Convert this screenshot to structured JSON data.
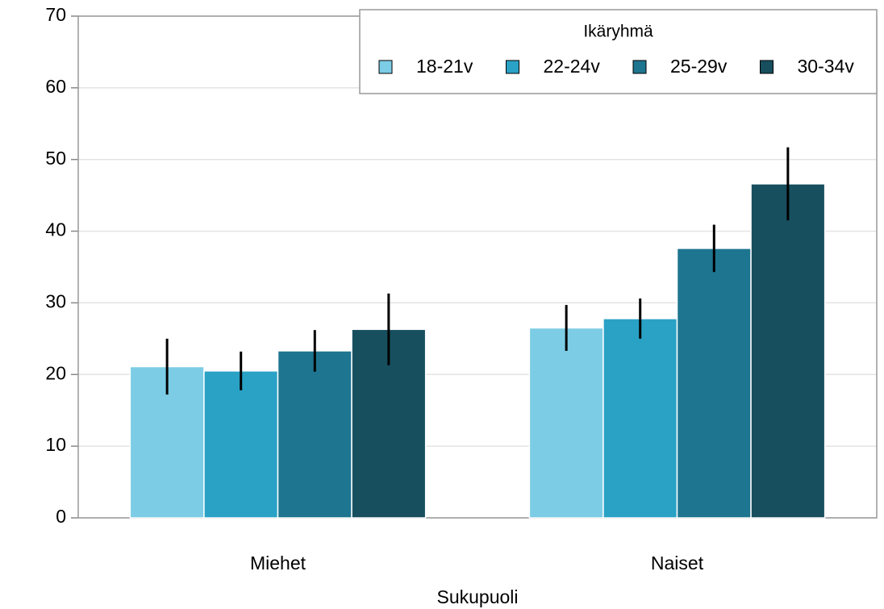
{
  "chart_data": {
    "type": "bar",
    "x_label": "Sukupuoli",
    "legend_title": "Ikäryhmä",
    "legend": "top-right",
    "grid": true,
    "categories": [
      "Miehet",
      "Naiset"
    ],
    "series": [
      {
        "name": "18-21v",
        "color": "#7ccce5",
        "values": [
          21.1,
          26.5
        ],
        "errors": [
          3.9,
          3.2
        ]
      },
      {
        "name": "22-24v",
        "color": "#2aa2c6",
        "values": [
          20.5,
          27.8
        ],
        "errors": [
          2.7,
          2.8
        ]
      },
      {
        "name": "25-29v",
        "color": "#1e7590",
        "values": [
          23.3,
          37.6
        ],
        "errors": [
          2.9,
          3.3
        ]
      },
      {
        "name": "30-34v",
        "color": "#174f5e",
        "values": [
          26.3,
          46.6
        ],
        "errors": [
          5.0,
          5.1
        ]
      }
    ],
    "ylim": [
      0,
      70
    ],
    "yticks": [
      0,
      10,
      20,
      30,
      40,
      50,
      60,
      70
    ]
  }
}
